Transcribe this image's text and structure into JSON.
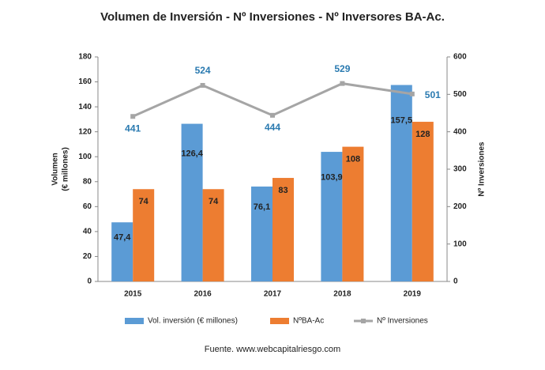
{
  "chart_data": {
    "type": "bar-line",
    "title": "Volumen de Inversión - Nº Inversiones - Nº Inversores BA-Ac.",
    "categories": [
      "2015",
      "2016",
      "2017",
      "2018",
      "2019"
    ],
    "series": [
      {
        "name": "Vol. inversión (€ millones)",
        "color": "#5b9bd5",
        "type": "bar",
        "values": [
          47.4,
          126.4,
          76.1,
          103.9,
          157.5
        ],
        "value_labels": [
          "47,4",
          "126,4",
          "76,1",
          "103,9",
          "157,5"
        ]
      },
      {
        "name": "NºBA-Ac",
        "color": "#ed7d31",
        "type": "bar",
        "values": [
          74,
          74,
          83,
          108,
          128
        ]
      },
      {
        "name": "Nº Inversiones",
        "color": "#a5a5a5",
        "type": "line",
        "axis": "y2",
        "values": [
          441,
          524,
          444,
          529,
          501
        ]
      }
    ],
    "ylabel": [
      "Volumen",
      "(€ millones)"
    ],
    "y2label": "Nº Inversiones",
    "ylim": [
      0,
      180
    ],
    "yticks": [
      0,
      20,
      40,
      60,
      80,
      100,
      120,
      140,
      160,
      180
    ],
    "y2lim": [
      0,
      600
    ],
    "y2ticks": [
      0,
      100,
      200,
      300,
      400,
      500,
      600
    ],
    "legend": "bottom",
    "source": "Fuente. www.webcapitalriesgo.com"
  }
}
